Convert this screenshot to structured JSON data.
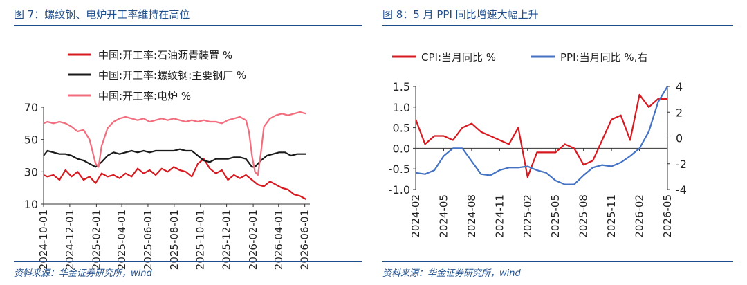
{
  "left_panel": {
    "title": "图 7：螺纹钢、电炉开工率维持在高位",
    "source": "资料来源：华金证券研究所，wind"
  },
  "right_panel": {
    "title": "图 8：5 月 PPI 同比增速大幅上升",
    "source": "资料来源：华金证券研究所，wind"
  },
  "chart_data": [
    {
      "type": "line",
      "title": "",
      "xlabel": "",
      "ylabel": "",
      "ylim": [
        10,
        70
      ],
      "y_ticks": [
        "10",
        "30",
        "50",
        "70"
      ],
      "x_ticks": [
        "2024-10-01",
        "2024-12-01",
        "2025-02-01",
        "2025-04-01",
        "2025-06-01",
        "2025-08-01",
        "2025-10-01",
        "2025-12-01",
        "2026-02-01",
        "2026-04-01",
        "2026-06-01"
      ],
      "x_range": [
        "2024-10-01",
        "2026-06-08"
      ],
      "legend_position": "top",
      "grid": false,
      "series": [
        {
          "name": "中国:开工率:石油沥青装置 %",
          "color": "#d71920",
          "x": [
            "2024-10-01",
            "2024-10-10",
            "2024-10-24",
            "2024-11-07",
            "2024-11-21",
            "2024-12-05",
            "2024-12-19",
            "2025-01-02",
            "2025-01-16",
            "2025-01-30",
            "2025-02-13",
            "2025-02-27",
            "2025-03-13",
            "2025-03-27",
            "2025-04-10",
            "2025-04-24",
            "2025-05-08",
            "2025-05-22",
            "2025-06-05",
            "2025-06-19",
            "2025-07-03",
            "2025-07-17",
            "2025-07-31",
            "2025-08-14",
            "2025-08-28",
            "2025-09-11",
            "2025-09-25",
            "2025-10-09",
            "2025-10-23",
            "2025-11-06",
            "2025-11-20",
            "2025-12-04",
            "2025-12-18",
            "2026-01-01",
            "2026-01-15",
            "2026-01-29",
            "2026-02-12",
            "2026-02-26",
            "2026-03-12",
            "2026-03-26",
            "2026-04-09",
            "2026-04-23",
            "2026-05-07",
            "2026-05-21",
            "2026-06-04"
          ],
          "values": [
            28,
            27,
            28,
            25,
            31,
            27,
            30,
            25,
            27,
            23,
            29,
            27,
            28,
            26,
            29,
            27,
            32,
            29,
            31,
            28,
            32,
            30,
            33,
            31,
            30,
            27,
            35,
            38,
            32,
            29,
            31,
            25,
            28,
            26,
            28,
            25,
            22,
            21,
            24,
            22,
            20,
            19,
            16,
            15,
            13
          ]
        },
        {
          "name": "中国:开工率:螺纹钢:主要钢厂 %",
          "color": "#1a1a1a",
          "x": [
            "2024-10-01",
            "2024-10-10",
            "2024-10-24",
            "2024-11-07",
            "2024-11-21",
            "2024-12-05",
            "2024-12-19",
            "2025-01-02",
            "2025-01-16",
            "2025-01-30",
            "2025-02-13",
            "2025-02-27",
            "2025-03-13",
            "2025-03-27",
            "2025-04-10",
            "2025-04-24",
            "2025-05-08",
            "2025-05-22",
            "2025-06-05",
            "2025-06-19",
            "2025-07-03",
            "2025-07-17",
            "2025-07-31",
            "2025-08-14",
            "2025-08-28",
            "2025-09-11",
            "2025-09-25",
            "2025-10-09",
            "2025-10-23",
            "2025-11-06",
            "2025-11-20",
            "2025-12-04",
            "2025-12-18",
            "2026-01-01",
            "2026-01-15",
            "2026-01-29",
            "2026-02-05",
            "2026-02-19",
            "2026-03-05",
            "2026-03-19",
            "2026-04-02",
            "2026-04-16",
            "2026-04-30",
            "2026-05-14",
            "2026-06-04"
          ],
          "values": [
            40,
            43,
            42,
            41,
            41,
            40,
            38,
            37,
            35,
            33,
            36,
            40,
            42,
            41,
            42,
            43,
            42,
            43,
            42,
            43,
            43,
            43,
            43,
            44,
            43,
            43,
            40,
            37,
            36,
            38,
            38,
            38,
            39,
            39,
            38,
            33,
            33,
            37,
            40,
            41,
            42,
            42,
            40,
            41,
            41
          ]
        },
        {
          "name": "中国:开工率:电炉 %",
          "color": "#f26d7d",
          "x": [
            "2024-10-01",
            "2024-10-10",
            "2024-10-24",
            "2024-11-07",
            "2024-11-21",
            "2024-12-05",
            "2024-12-19",
            "2025-01-02",
            "2025-01-16",
            "2025-01-30",
            "2025-02-06",
            "2025-02-13",
            "2025-02-27",
            "2025-03-13",
            "2025-03-27",
            "2025-04-10",
            "2025-04-24",
            "2025-05-08",
            "2025-05-22",
            "2025-06-05",
            "2025-06-19",
            "2025-07-03",
            "2025-07-17",
            "2025-07-31",
            "2025-08-14",
            "2025-08-28",
            "2025-09-11",
            "2025-09-25",
            "2025-10-09",
            "2025-10-23",
            "2025-11-06",
            "2025-11-20",
            "2025-12-04",
            "2025-12-18",
            "2026-01-01",
            "2026-01-15",
            "2026-01-22",
            "2026-01-29",
            "2026-02-05",
            "2026-02-12",
            "2026-02-19",
            "2026-02-26",
            "2026-03-12",
            "2026-03-26",
            "2026-04-09",
            "2026-04-23",
            "2026-05-07",
            "2026-05-21",
            "2026-06-04"
          ],
          "values": [
            60,
            61,
            60,
            61,
            60,
            58,
            55,
            56,
            50,
            35,
            33,
            46,
            57,
            61,
            63,
            64,
            63,
            62,
            63,
            61,
            62,
            63,
            62,
            63,
            62,
            61,
            62,
            61,
            62,
            61,
            61,
            60,
            62,
            63,
            64,
            62,
            55,
            40,
            30,
            28,
            42,
            58,
            63,
            65,
            66,
            65,
            66,
            67,
            66
          ]
        }
      ]
    },
    {
      "type": "line",
      "title": "",
      "xlabel": "",
      "ylabel": "",
      "ylim": [
        -1.0,
        1.5
      ],
      "ylim_right": [
        -4,
        4
      ],
      "y_ticks": [
        "-1.0",
        "-0.5",
        "0.0",
        "0.5",
        "1.0",
        "1.5"
      ],
      "y_ticks_right": [
        "-4",
        "-2",
        "0",
        "2",
        "4"
      ],
      "x_ticks": [
        "2024-02",
        "2024-05",
        "2024-08",
        "2024-11",
        "2025-02",
        "2025-05",
        "2025-08",
        "2025-11",
        "2026-02",
        "2026-05"
      ],
      "x_range": [
        "2024-02",
        "2026-05"
      ],
      "legend_position": "top",
      "grid": false,
      "series": [
        {
          "name": "CPI:当月同比 %",
          "color": "#d71920",
          "axis": "left",
          "x": [
            "2024-02",
            "2024-03",
            "2024-04",
            "2024-05",
            "2024-06",
            "2024-07",
            "2024-08",
            "2024-09",
            "2024-10",
            "2024-11",
            "2024-12",
            "2025-01",
            "2025-02",
            "2025-03",
            "2025-04",
            "2025-05",
            "2025-06",
            "2025-07",
            "2025-08",
            "2025-09",
            "2025-10",
            "2025-11",
            "2025-12",
            "2026-01",
            "2026-02",
            "2026-03",
            "2026-04",
            "2026-05"
          ],
          "values": [
            0.7,
            0.1,
            0.3,
            0.3,
            0.2,
            0.5,
            0.6,
            0.4,
            0.3,
            0.2,
            0.1,
            0.5,
            -0.7,
            -0.1,
            -0.1,
            -0.1,
            0.1,
            0.0,
            -0.4,
            -0.3,
            0.2,
            0.7,
            0.8,
            0.2,
            1.3,
            1.0,
            1.2,
            1.2
          ]
        },
        {
          "name": "PPI:当月同比 %,右",
          "color": "#4472c4",
          "axis": "right",
          "x": [
            "2024-02",
            "2024-03",
            "2024-04",
            "2024-05",
            "2024-06",
            "2024-07",
            "2024-08",
            "2024-09",
            "2024-10",
            "2024-11",
            "2024-12",
            "2025-01",
            "2025-02",
            "2025-03",
            "2025-04",
            "2025-05",
            "2025-06",
            "2025-07",
            "2025-08",
            "2025-09",
            "2025-10",
            "2025-11",
            "2025-12",
            "2026-01",
            "2026-02",
            "2026-03",
            "2026-04",
            "2026-05"
          ],
          "values": [
            -2.7,
            -2.8,
            -2.5,
            -1.4,
            -0.8,
            -0.8,
            -1.8,
            -2.8,
            -2.9,
            -2.5,
            -2.3,
            -2.3,
            -2.2,
            -2.5,
            -2.7,
            -3.3,
            -3.6,
            -3.6,
            -2.9,
            -2.3,
            -2.1,
            -2.2,
            -1.9,
            -1.4,
            -0.8,
            0.5,
            2.8,
            4.0
          ]
        }
      ]
    }
  ]
}
